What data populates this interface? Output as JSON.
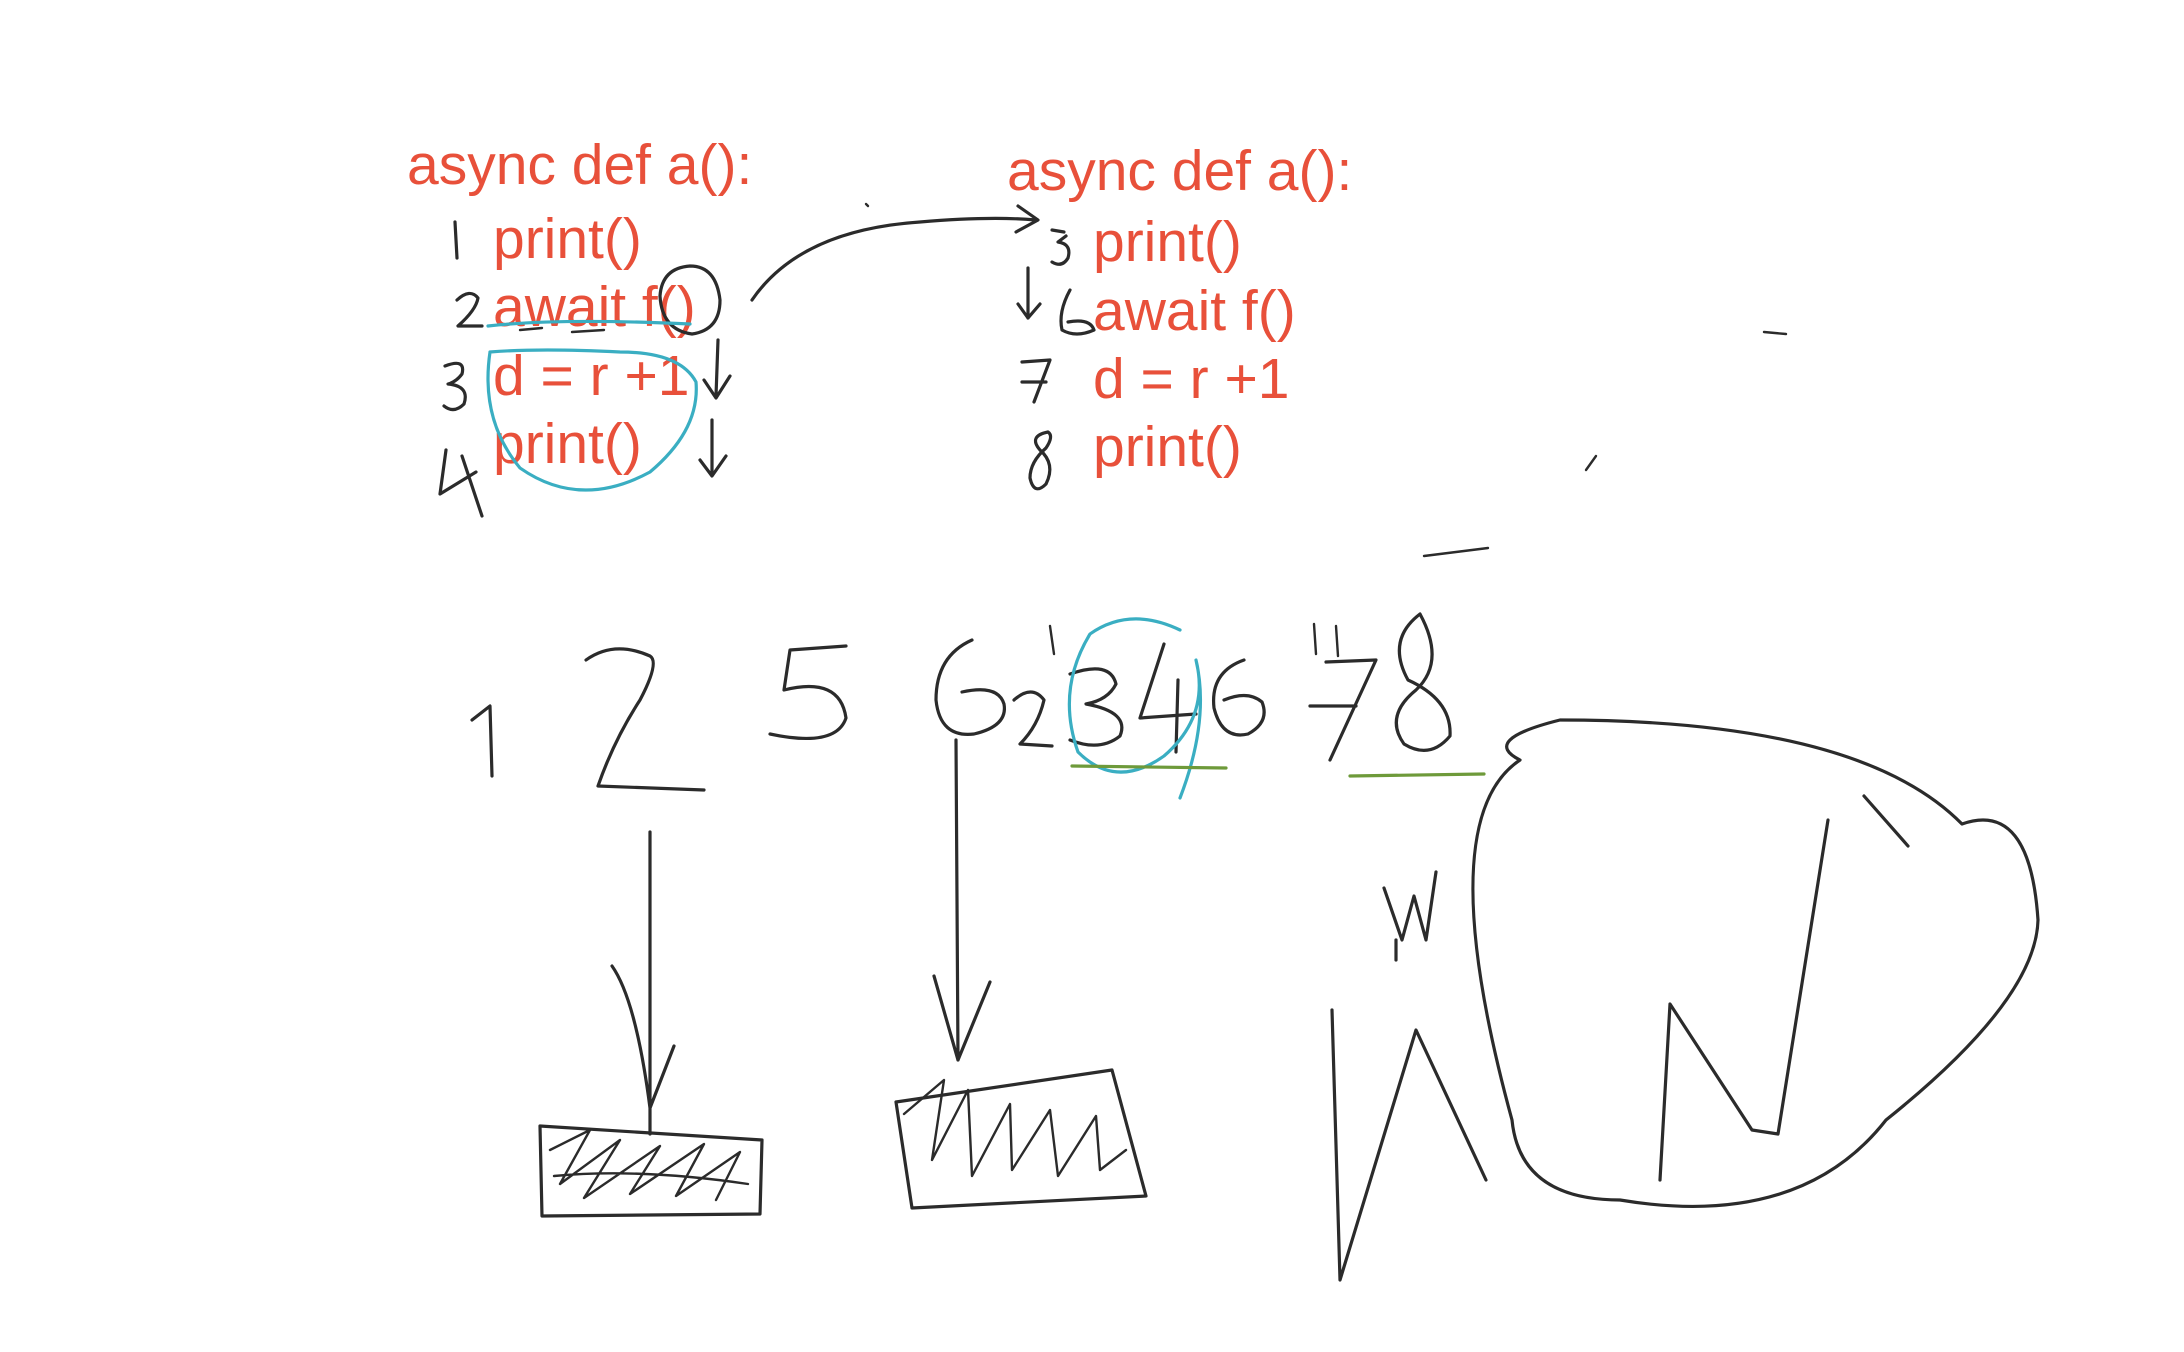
{
  "code_left": {
    "header": "async def a():",
    "lines": [
      "print()",
      "await f()",
      "d = r +1",
      "print()"
    ]
  },
  "code_right": {
    "header": "async def a():",
    "lines": [
      "print()",
      "await f()",
      "d = r +1",
      "print()"
    ]
  },
  "colors": {
    "code_text": "#e8503a",
    "ink": "#2b2b2b",
    "highlight_teal": "#3aaec2",
    "underline_green": "#6e9a3a"
  }
}
